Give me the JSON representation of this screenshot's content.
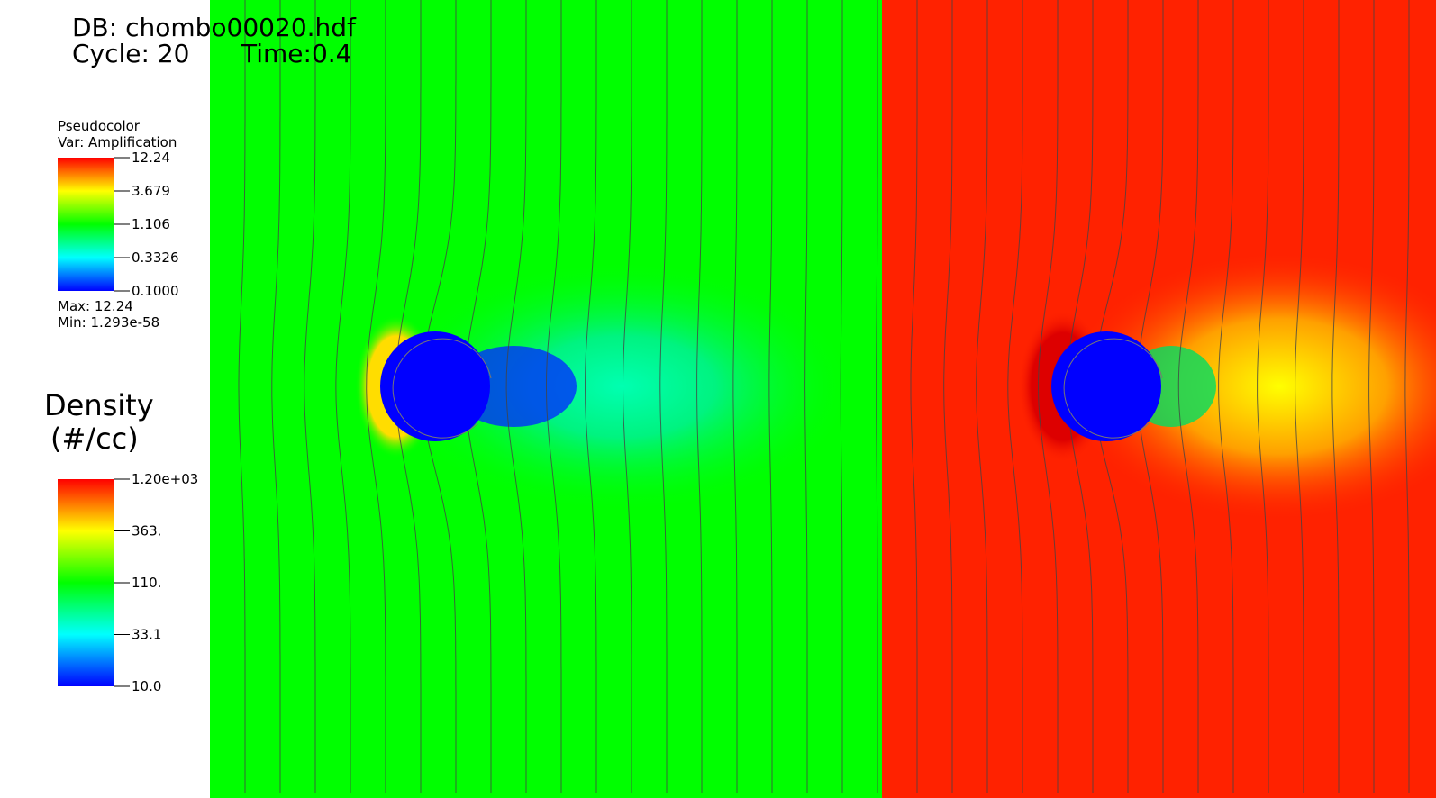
{
  "header": {
    "db": "DB: chombo00020.hdf",
    "cycle": "Cycle: 20",
    "time": "Time:0.4"
  },
  "legend_amplification": {
    "plot": "Pseudocolor",
    "var": "Var: Amplification",
    "ticks": [
      "12.24",
      "3.679",
      "1.106",
      "0.3326",
      "0.1000"
    ],
    "max": "Max:  12.24",
    "min": "Min:  1.293e-58"
  },
  "legend_density": {
    "title": "Density",
    "units": "(#/cc)",
    "ticks": [
      "1.20e+03",
      "363.",
      "110.",
      "33.1",
      "10.0"
    ]
  }
}
